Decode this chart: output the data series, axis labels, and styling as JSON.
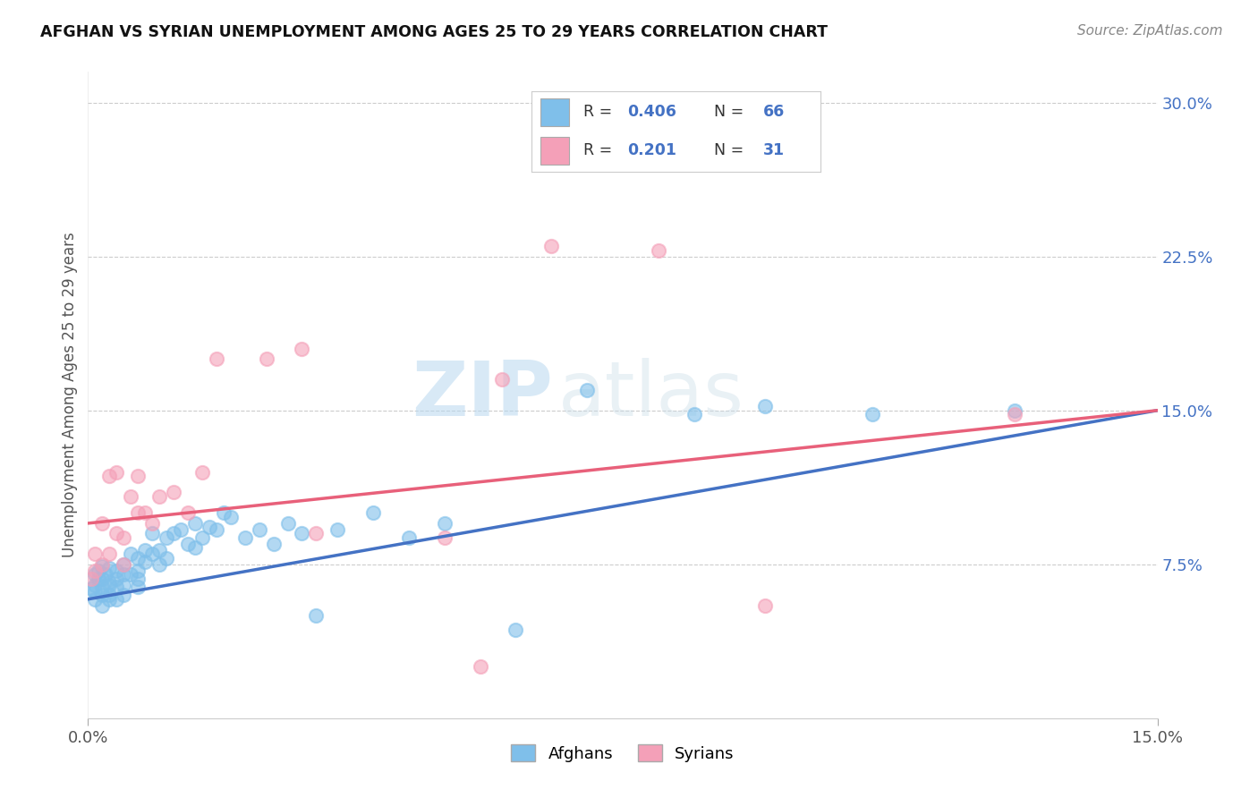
{
  "title": "AFGHAN VS SYRIAN UNEMPLOYMENT AMONG AGES 25 TO 29 YEARS CORRELATION CHART",
  "source": "Source: ZipAtlas.com",
  "ylabel_label": "Unemployment Among Ages 25 to 29 years",
  "r_afghan": 0.406,
  "n_afghan": 66,
  "r_syrian": 0.201,
  "n_syrian": 31,
  "watermark_zip": "ZIP",
  "watermark_atlas": "atlas",
  "background_color": "#ffffff",
  "afghan_color": "#7fbfea",
  "syrian_color": "#f4a0b8",
  "afghan_line_color": "#4472c4",
  "syrian_line_color": "#e8607a",
  "xlim": [
    0.0,
    0.15
  ],
  "ylim": [
    0.0,
    0.315
  ],
  "y_ticks": [
    0.075,
    0.15,
    0.225,
    0.3
  ],
  "y_tick_labels": [
    "7.5%",
    "15.0%",
    "22.5%",
    "30.0%"
  ],
  "x_ticks": [
    0.0,
    0.15
  ],
  "x_tick_labels": [
    "0.0%",
    "15.0%"
  ],
  "afghan_line_start_y": 0.058,
  "afghan_line_end_y": 0.15,
  "syrian_line_start_y": 0.095,
  "syrian_line_end_y": 0.15,
  "afghan_x": [
    0.0005,
    0.001,
    0.001,
    0.001,
    0.001,
    0.0015,
    0.0015,
    0.002,
    0.002,
    0.002,
    0.002,
    0.002,
    0.0025,
    0.003,
    0.003,
    0.003,
    0.003,
    0.003,
    0.004,
    0.004,
    0.004,
    0.004,
    0.005,
    0.005,
    0.005,
    0.005,
    0.006,
    0.006,
    0.007,
    0.007,
    0.007,
    0.007,
    0.008,
    0.008,
    0.009,
    0.009,
    0.01,
    0.01,
    0.011,
    0.011,
    0.012,
    0.013,
    0.014,
    0.015,
    0.015,
    0.016,
    0.017,
    0.018,
    0.019,
    0.02,
    0.022,
    0.024,
    0.026,
    0.028,
    0.03,
    0.032,
    0.035,
    0.04,
    0.045,
    0.05,
    0.06,
    0.07,
    0.085,
    0.095,
    0.11,
    0.13
  ],
  "afghan_y": [
    0.063,
    0.065,
    0.07,
    0.062,
    0.058,
    0.068,
    0.072,
    0.06,
    0.064,
    0.068,
    0.055,
    0.074,
    0.07,
    0.06,
    0.065,
    0.073,
    0.058,
    0.066,
    0.068,
    0.072,
    0.064,
    0.058,
    0.07,
    0.065,
    0.075,
    0.06,
    0.07,
    0.08,
    0.072,
    0.078,
    0.064,
    0.068,
    0.082,
    0.076,
    0.08,
    0.09,
    0.082,
    0.075,
    0.088,
    0.078,
    0.09,
    0.092,
    0.085,
    0.095,
    0.083,
    0.088,
    0.093,
    0.092,
    0.1,
    0.098,
    0.088,
    0.092,
    0.085,
    0.095,
    0.09,
    0.05,
    0.092,
    0.1,
    0.088,
    0.095,
    0.043,
    0.16,
    0.148,
    0.152,
    0.148,
    0.15
  ],
  "syrian_x": [
    0.0005,
    0.001,
    0.001,
    0.002,
    0.002,
    0.003,
    0.003,
    0.004,
    0.004,
    0.005,
    0.005,
    0.006,
    0.007,
    0.007,
    0.008,
    0.009,
    0.01,
    0.012,
    0.014,
    0.016,
    0.018,
    0.025,
    0.03,
    0.032,
    0.05,
    0.055,
    0.058,
    0.065,
    0.08,
    0.095,
    0.13
  ],
  "syrian_y": [
    0.068,
    0.072,
    0.08,
    0.075,
    0.095,
    0.08,
    0.118,
    0.09,
    0.12,
    0.075,
    0.088,
    0.108,
    0.1,
    0.118,
    0.1,
    0.095,
    0.108,
    0.11,
    0.1,
    0.12,
    0.175,
    0.175,
    0.18,
    0.09,
    0.088,
    0.025,
    0.165,
    0.23,
    0.228,
    0.055,
    0.148
  ]
}
